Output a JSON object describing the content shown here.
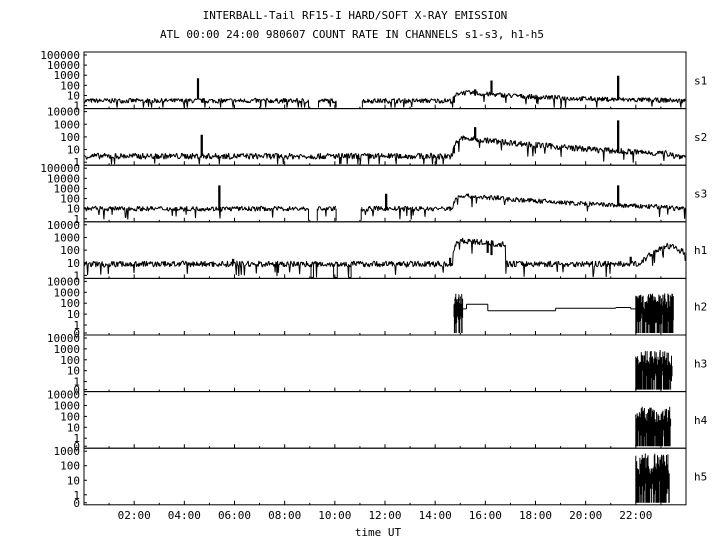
{
  "title": "INTERBALL-Tail RF15-I HARD/SOFT X-RAY EMISSION",
  "subtitle": "ATL 00:00 24:00 980607  COUNT RATE IN CHANNELS s1-s3, h1-h5",
  "chart_data": {
    "type": "line",
    "title": "INTERBALL-Tail RF15-I HARD/SOFT X-RAY EMISSION",
    "subtitle": "ATL 00:00 24:00 980607  COUNT RATE IN CHANNELS s1-s3, h1-h5",
    "xlabel": "time UT",
    "xlim_hours": [
      0,
      24
    ],
    "x_ticks": [
      "02:00",
      "04:00",
      "06:00",
      "08:00",
      "10:00",
      "12:00",
      "14:00",
      "16:00",
      "18:00",
      "20:00",
      "22:00"
    ],
    "y_scale": "log",
    "panels": [
      {
        "name": "s1",
        "y_ticks": [
          "100000",
          "10000",
          "1000",
          "100",
          "10",
          "1"
        ],
        "background": 3,
        "gaps": [
          [
            8.95,
            9.35
          ],
          [
            10.05,
            11.1
          ]
        ],
        "spikes": [
          [
            4.55,
            500
          ],
          [
            14.75,
            2
          ],
          [
            15.6,
            40
          ],
          [
            16.25,
            300
          ],
          [
            21.3,
            900
          ]
        ],
        "event": {
          "start": 14.7,
          "peak": 15.0,
          "peak_value": 20,
          "end": 23.5
        },
        "late_activity": null
      },
      {
        "name": "s2",
        "y_ticks": [
          "10000",
          "1000",
          "100",
          "10",
          "1"
        ],
        "background": 3,
        "gaps": [],
        "spikes": [
          [
            4.7,
            150
          ],
          [
            14.75,
            5
          ],
          [
            15.6,
            600
          ],
          [
            16.5,
            30
          ],
          [
            21.3,
            2000
          ]
        ],
        "event": {
          "start": 14.7,
          "peak": 15.05,
          "peak_value": 80,
          "end": 23.5
        },
        "late_activity": null
      },
      {
        "name": "s3",
        "y_ticks": [
          "100000",
          "10000",
          "1000",
          "100",
          "10",
          "1"
        ],
        "background": 10,
        "gaps": [
          [
            8.95,
            9.3
          ],
          [
            10.05,
            11.05
          ]
        ],
        "spikes": [
          [
            5.4,
            2000
          ],
          [
            12.05,
            300
          ],
          [
            16.5,
            200
          ],
          [
            21.3,
            2000
          ]
        ],
        "event": {
          "start": 14.7,
          "peak": 15.0,
          "peak_value": 200,
          "end": 23.5
        },
        "late_activity": null
      },
      {
        "name": "h1",
        "y_ticks": [
          "10000",
          "1000",
          "100",
          "10",
          "1"
        ],
        "background": 8,
        "gaps": [],
        "spikes": [
          [
            5.95,
            20
          ],
          [
            14.6,
            25
          ],
          [
            16.1,
            60
          ],
          [
            16.25,
            40
          ],
          [
            21.8,
            30
          ]
        ],
        "dips": [
          [
            9.05,
            9.15,
            0.3
          ],
          [
            9.95,
            10.1,
            0.2
          ],
          [
            10.55,
            10.65,
            0.3
          ]
        ],
        "event": {
          "start": 14.7,
          "peak": 14.95,
          "peak_value": 600,
          "end": 16.8
        },
        "late_activity": {
          "start": 22.0,
          "end": 23.95,
          "peak": 23.3,
          "peak_value": 200
        }
      },
      {
        "name": "h2",
        "y_ticks": [
          "10000",
          "1000",
          "100",
          "10",
          "1",
          "0"
        ],
        "steps": [
          [
            14.75,
            15.0,
            200
          ],
          [
            15.0,
            15.25,
            30
          ],
          [
            15.25,
            16.1,
            80
          ],
          [
            16.1,
            18.8,
            20
          ],
          [
            18.8,
            21.2,
            35
          ],
          [
            21.2,
            21.8,
            40
          ],
          [
            21.8,
            22.0,
            30
          ]
        ],
        "bursts": [
          [
            14.75,
            15.1
          ],
          [
            22.0,
            23.5
          ]
        ]
      },
      {
        "name": "h3",
        "y_ticks": [
          "10000",
          "1000",
          "100",
          "10",
          "1",
          "0"
        ],
        "steps": [],
        "bursts": [
          [
            22.0,
            23.45
          ]
        ]
      },
      {
        "name": "h4",
        "y_ticks": [
          "10000",
          "1000",
          "100",
          "10",
          "1",
          "0"
        ],
        "steps": [],
        "bursts": [
          [
            22.0,
            23.4
          ]
        ]
      },
      {
        "name": "h5",
        "y_ticks": [
          "1000",
          "100",
          "10",
          "1",
          "0"
        ],
        "steps": [],
        "bursts": [
          [
            22.0,
            23.35
          ]
        ]
      }
    ]
  }
}
